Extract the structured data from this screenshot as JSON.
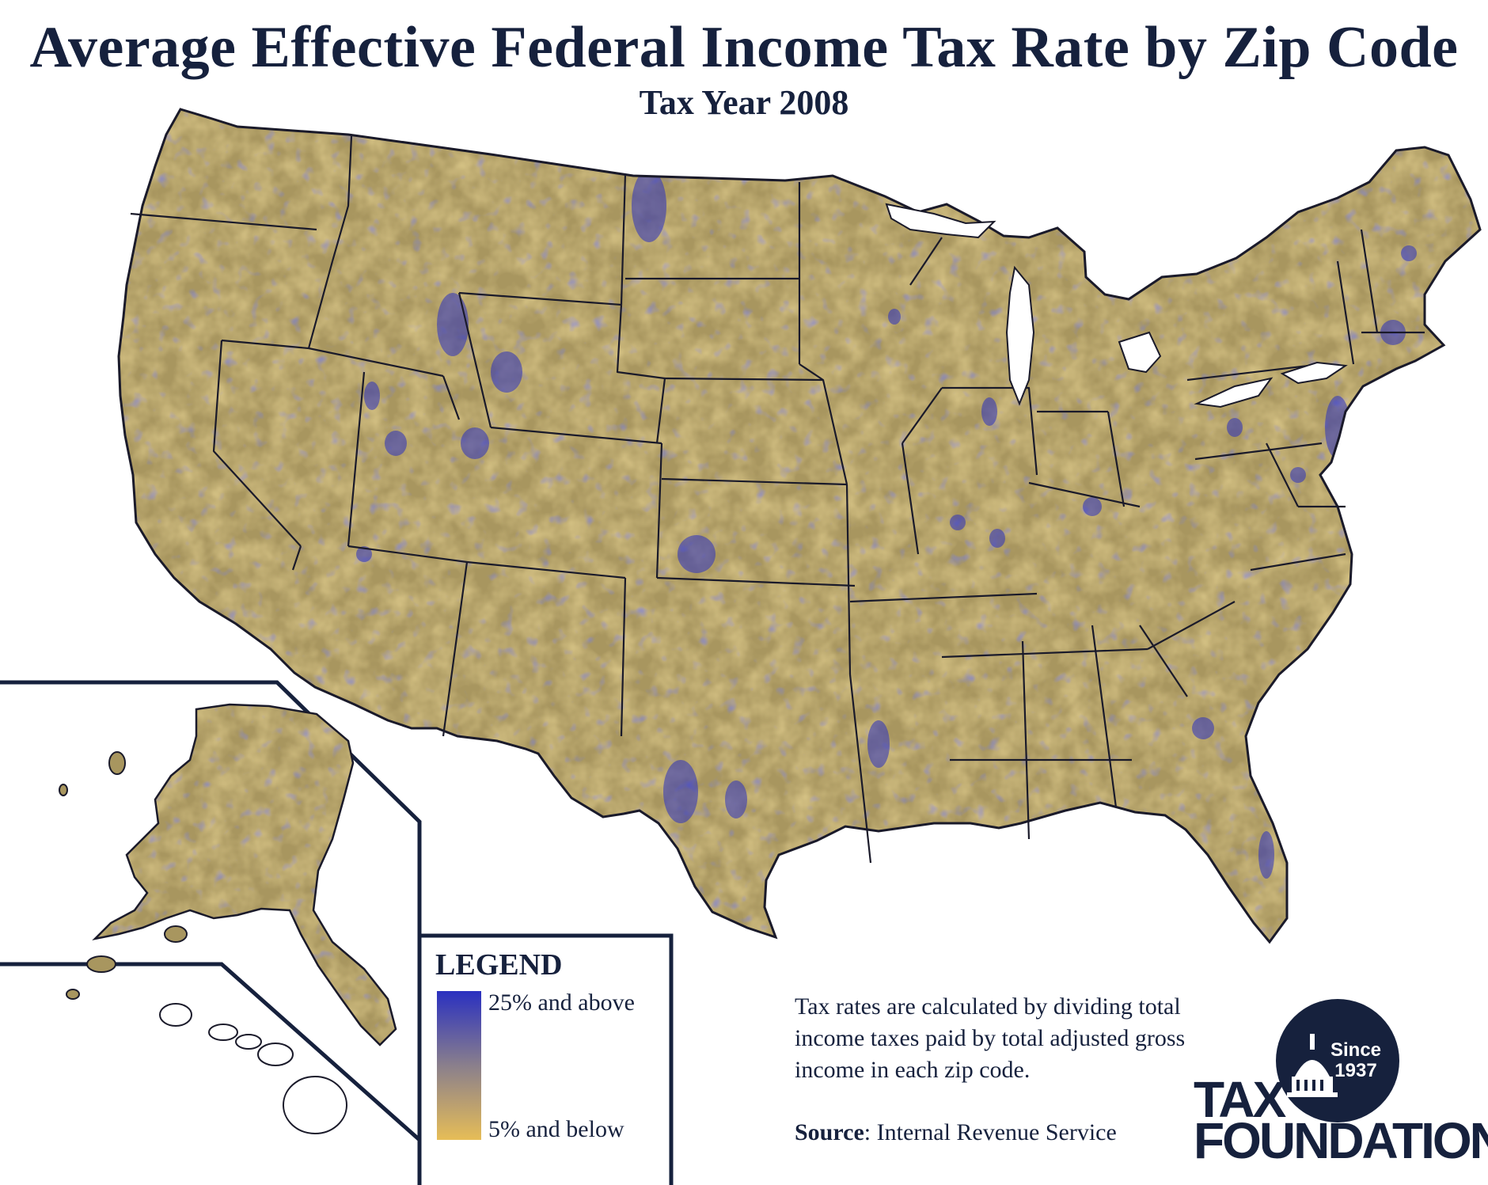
{
  "title": "Average Effective Federal Income Tax Rate by Zip Code",
  "subtitle": "Tax Year 2008",
  "legend": {
    "title": "LEGEND",
    "high_label": "25% and above",
    "low_label": "5% and below",
    "high_color": "#2a30c0",
    "mid_color": "#8a7f8c",
    "low_color": "#e6bd57"
  },
  "note": "Tax rates are calculated by dividing total income taxes paid by total adjusted gross income in each zip code.",
  "source": {
    "label": "Source",
    "value": ": Internal Revenue Service"
  },
  "logo": {
    "since_line1": "Since",
    "since_line2": "1937",
    "word1": "TAX",
    "word2": "FOUNDATION"
  },
  "colors": {
    "navy": "#16213d",
    "land_base": "#a8965f",
    "border": "#1a1a2a"
  }
}
